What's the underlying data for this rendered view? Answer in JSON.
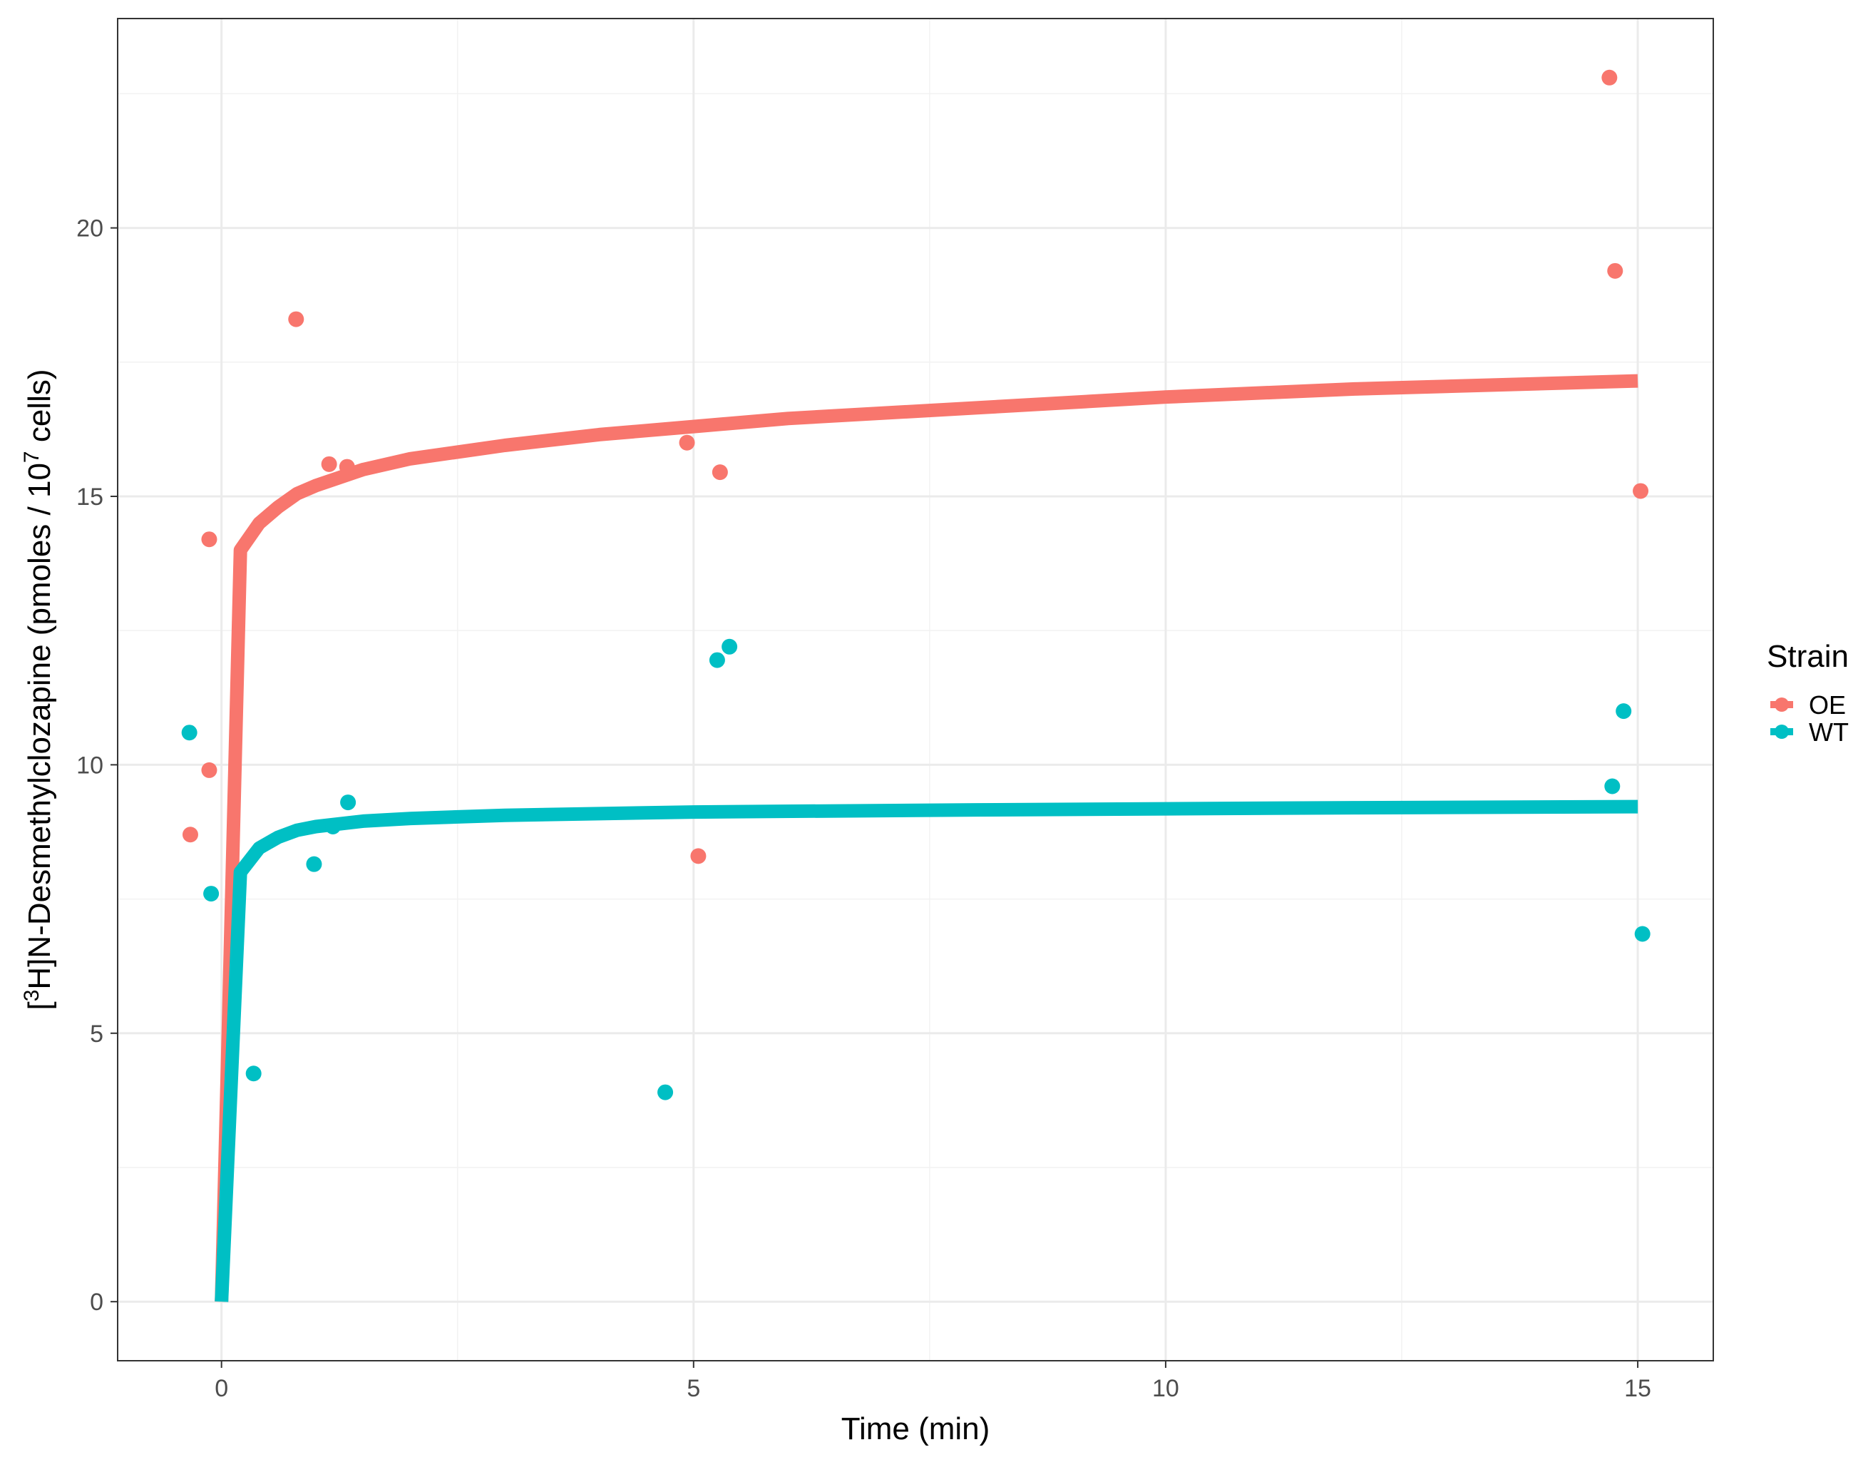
{
  "chart_data": {
    "type": "scatter",
    "xlabel": "Time (min)",
    "ylabel": {
      "prefix": "[",
      "sup1": "3",
      "middle": "H]N-Desmethylclozapine (pmoles / 10",
      "sup2": "7",
      "suffix": " cells)"
    },
    "xlim": [
      -1.1,
      15.8
    ],
    "ylim": [
      -1.1,
      23.9
    ],
    "x_ticks": [
      0,
      5,
      10,
      15
    ],
    "y_ticks": [
      0,
      5,
      10,
      15,
      20
    ],
    "x_tick_labels": [
      "0",
      "5",
      "10",
      "15"
    ],
    "y_tick_labels": [
      "0",
      "5",
      "10",
      "15",
      "20"
    ],
    "grid": true,
    "legend": {
      "title": "Strain",
      "placement": "right",
      "entries": [
        "OE",
        "WT"
      ]
    },
    "series": [
      {
        "name": "OE",
        "color": "#F8766D",
        "points": [
          [
            -0.33,
            8.7
          ],
          [
            -0.13,
            9.9
          ],
          [
            -0.13,
            14.2
          ],
          [
            0.79,
            18.3
          ],
          [
            1.14,
            15.6
          ],
          [
            1.33,
            15.55
          ],
          [
            4.93,
            16.0
          ],
          [
            5.05,
            8.3
          ],
          [
            5.28,
            15.45
          ],
          [
            14.7,
            22.8
          ],
          [
            14.76,
            19.2
          ],
          [
            15.03,
            15.1
          ]
        ],
        "fit": [
          [
            0,
            0
          ],
          [
            0.2,
            14.0
          ],
          [
            0.4,
            14.5
          ],
          [
            0.6,
            14.8
          ],
          [
            0.8,
            15.05
          ],
          [
            1.0,
            15.2
          ],
          [
            1.5,
            15.5
          ],
          [
            2.0,
            15.7
          ],
          [
            3.0,
            15.95
          ],
          [
            4.0,
            16.15
          ],
          [
            5.0,
            16.3
          ],
          [
            6.0,
            16.45
          ],
          [
            8.0,
            16.65
          ],
          [
            10.0,
            16.85
          ],
          [
            12.0,
            17.0
          ],
          [
            15.0,
            17.15
          ]
        ]
      },
      {
        "name": "WT",
        "color": "#00BFC4",
        "points": [
          [
            -0.34,
            10.6
          ],
          [
            -0.11,
            7.6
          ],
          [
            0.34,
            4.25
          ],
          [
            0.98,
            8.15
          ],
          [
            1.18,
            8.85
          ],
          [
            1.34,
            9.3
          ],
          [
            4.7,
            3.9
          ],
          [
            5.25,
            11.95
          ],
          [
            5.38,
            12.2
          ],
          [
            14.73,
            9.6
          ],
          [
            14.85,
            11.0
          ],
          [
            15.05,
            6.85
          ]
        ],
        "fit": [
          [
            0,
            0
          ],
          [
            0.2,
            8.0
          ],
          [
            0.4,
            8.45
          ],
          [
            0.6,
            8.65
          ],
          [
            0.8,
            8.78
          ],
          [
            1.0,
            8.85
          ],
          [
            1.5,
            8.95
          ],
          [
            2.0,
            9.0
          ],
          [
            3.0,
            9.06
          ],
          [
            5.0,
            9.12
          ],
          [
            8.0,
            9.16
          ],
          [
            10.0,
            9.18
          ],
          [
            12.0,
            9.2
          ],
          [
            15.0,
            9.22
          ]
        ]
      }
    ]
  }
}
